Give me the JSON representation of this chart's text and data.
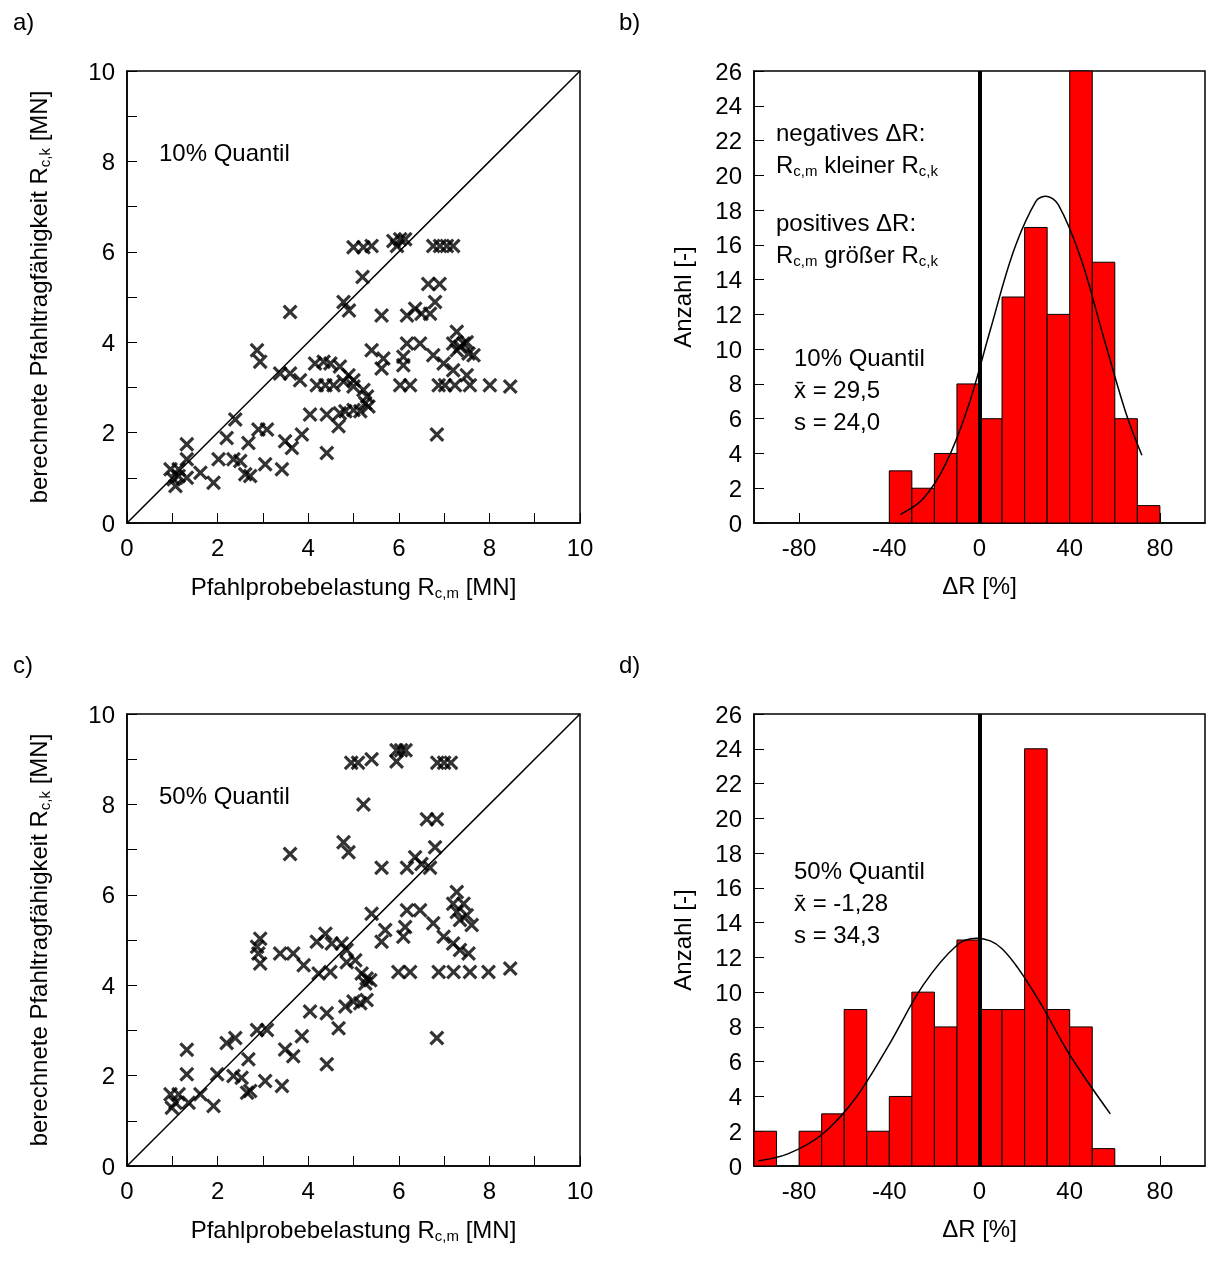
{
  "chart_data": [
    {
      "type": "scatter",
      "title": "a)",
      "xlabel": "Pfahlprobebelastung R$_{c,m}$ [MN]",
      "ylabel": "berechnete Pfahltragfähigkeit R$_{c,k}$ [MN]",
      "annotations": [
        "10% Quantil"
      ],
      "marker": "cross",
      "xlim": [
        0,
        10
      ],
      "ylim": [
        0,
        10
      ],
      "xticks": [
        0,
        {
          "value": 1,
          "label": null
        },
        2,
        {
          "value": 3,
          "label": null
        },
        4,
        {
          "value": 5,
          "label": null
        },
        6,
        {
          "value": 7,
          "label": null
        },
        8,
        {
          "value": 9,
          "label": null
        },
        10
      ],
      "yticks": [
        0,
        {
          "value": 1,
          "label": null
        },
        2,
        {
          "value": 3,
          "label": null
        },
        4,
        {
          "value": 5,
          "label": null
        },
        6,
        {
          "value": 7,
          "label": null
        },
        8,
        {
          "value": 9,
          "label": null
        },
        10
      ],
      "series": [
        {
          "color": "#000000",
          "x": [
            5.0,
            5.22,
            5.4,
            5.88,
            6.03,
            6.14,
            5.96,
            6.76,
            6.91,
            7.06,
            7.2,
            5.2,
            4.78,
            4.9,
            3.6,
            5.62,
            6.18,
            6.36,
            6.5,
            6.69,
            6.8,
            6.65,
            6.9,
            7.28,
            7.2,
            7.43,
            7.28,
            7.54,
            7.35,
            7.5,
            2.87,
            2.94,
            5.4,
            5.66,
            5.62,
            6.18,
            6.47,
            6.1,
            6.1,
            6.76,
            6.99,
            7.2,
            7.5,
            7.65,
            3.38,
            3.6,
            3.82,
            4.15,
            4.34,
            4.49,
            4.7,
            4.89,
            5.0,
            4.19,
            4.38,
            4.56,
            4.78,
            5.0,
            5.22,
            5.3,
            5.26,
            5.33,
            6.03,
            6.25,
            6.88,
            7.02,
            7.24,
            7.57,
            8.01,
            8.46,
            5.0,
            4.82,
            5.15,
            4.7,
            4.04,
            4.41,
            4.67,
            6.84,
            2.39,
            2.2,
            2.68,
            2.9,
            3.09,
            3.49,
            3.64,
            3.86,
            4.41,
            1.32,
            0.96,
            1.14,
            1.32,
            1.03,
            1.14,
            1.32,
            1.07,
            1.62,
            1.91,
            2.02,
            2.35,
            2.5,
            2.61,
            2.72,
            3.05,
            3.42
          ],
          "values": [
            6.1,
            6.1,
            6.13,
            6.24,
            6.28,
            6.28,
            6.13,
            6.13,
            6.13,
            6.13,
            6.13,
            5.44,
            4.89,
            4.7,
            4.67,
            4.59,
            4.59,
            4.74,
            4.63,
            4.63,
            4.89,
            5.29,
            5.29,
            4.23,
            3.97,
            3.97,
            3.82,
            3.75,
            3.9,
            4.0,
            3.82,
            3.57,
            3.82,
            3.64,
            3.42,
            3.97,
            3.97,
            3.68,
            3.49,
            3.71,
            3.53,
            3.38,
            3.27,
            3.71,
            3.31,
            3.31,
            3.16,
            3.53,
            3.57,
            3.53,
            3.46,
            3.27,
            3.16,
            3.05,
            3.05,
            3.05,
            3.13,
            3.02,
            2.94,
            2.8,
            2.65,
            2.58,
            3.05,
            3.05,
            3.05,
            3.05,
            3.05,
            3.05,
            3.05,
            3.02,
            2.5,
            2.47,
            2.47,
            2.43,
            2.4,
            2.4,
            2.14,
            1.96,
            2.29,
            1.88,
            1.77,
            2.07,
            2.07,
            1.81,
            1.66,
            1.96,
            1.55,
            1.74,
            1.19,
            1.19,
            1.41,
            0.97,
            1.04,
            1.0,
            0.82,
            1.11,
            0.89,
            1.41,
            1.41,
            1.37,
            1.08,
            1.04,
            1.3,
            1.19
          ]
        },
        {
          "type": "line",
          "marker": "none",
          "color": "#000000",
          "x": [
            0,
            10
          ],
          "values": [
            0,
            10
          ]
        }
      ]
    },
    {
      "type": "histogram",
      "title": "b)",
      "xlabel": "ΔR [%]",
      "ylabel": "Anzahl [-]",
      "annotations": [
        "negatives ΔR:\nR$_{c,m}$ kleiner R$_{c,k}$",
        "positives ΔR:\nR$_{c,m}$ größer R$_{c,k}$",
        "10% Quantil\nx̄ = 29,5\ns = 24,0"
      ],
      "bins": [
        -40,
        -30,
        -20,
        -10,
        0,
        10,
        20,
        30,
        40,
        50,
        60,
        70,
        80
      ],
      "values": [
        3,
        2,
        4,
        8,
        6,
        13,
        17,
        12,
        26,
        15,
        6,
        1
      ],
      "color": "#ff0000",
      "xlim": [
        -100,
        100
      ],
      "xticks": [
        -80,
        -40,
        0,
        40,
        80
      ],
      "ylim": [
        0,
        26
      ],
      "yticks": [
        0,
        2,
        4,
        6,
        8,
        10,
        12,
        14,
        16,
        18,
        20,
        22,
        24,
        26
      ],
      "ref_lines": [
        {
          "axis": "x",
          "value": 0,
          "color": "#000000"
        }
      ],
      "series": [
        {
          "type": "line",
          "color": "#000000",
          "x": [
            -35,
            -25,
            -15,
            -5,
            5,
            15,
            25,
            29.5,
            35,
            45,
            55,
            65,
            72
          ],
          "values": [
            0.5,
            1.4,
            3.4,
            6.7,
            11.2,
            15.6,
            18.5,
            18.8,
            18.3,
            15.2,
            10.7,
            6.3,
            3.9
          ]
        }
      ]
    },
    {
      "type": "scatter",
      "title": "c)",
      "xlabel": "Pfahlprobebelastung R$_{c,m}$ [MN]",
      "ylabel": "berechnete Pfahltragfähigkeit R$_{c,k}$ [MN]",
      "annotations": [
        "50% Quantil"
      ],
      "marker": "cross",
      "xlim": [
        0,
        10
      ],
      "ylim": [
        0,
        10
      ],
      "xticks": [
        0,
        {
          "value": 1,
          "label": null
        },
        2,
        {
          "value": 3,
          "label": null
        },
        4,
        {
          "value": 5,
          "label": null
        },
        6,
        {
          "value": 7,
          "label": null
        },
        8,
        {
          "value": 9,
          "label": null
        },
        10
      ],
      "yticks": [
        0,
        {
          "value": 1,
          "label": null
        },
        2,
        {
          "value": 3,
          "label": null
        },
        4,
        {
          "value": 5,
          "label": null
        },
        6,
        {
          "value": 7,
          "label": null
        },
        8,
        {
          "value": 9,
          "label": null
        },
        10
      ],
      "series": [
        {
          "color": "#000000",
          "x": [
            4.95,
            5.1,
            5.4,
            5.95,
            6.05,
            6.15,
            5.95,
            6.85,
            7.0,
            7.15,
            5.22,
            6.62,
            6.84,
            3.6,
            4.78,
            4.89,
            6.8,
            5.62,
            6.18,
            6.36,
            6.5,
            6.69,
            7.28,
            7.2,
            7.43,
            7.28,
            7.5,
            7.35,
            7.61,
            7.54,
            5.4,
            5.7,
            5.62,
            6.18,
            6.47,
            6.14,
            6.1,
            6.76,
            6.99,
            7.2,
            7.35,
            2.94,
            2.87,
            2.9,
            2.94,
            3.38,
            3.67,
            3.9,
            4.19,
            4.38,
            4.52,
            4.74,
            4.85,
            4.23,
            4.49,
            4.85,
            5.04,
            5.18,
            5.29,
            5.26,
            5.37,
            5.99,
            6.25,
            6.88,
            7.21,
            7.57,
            7.98,
            8.46,
            4.04,
            4.41,
            4.67,
            4.82,
            5.0,
            5.15,
            5.29,
            6.84,
            2.2,
            2.39,
            2.87,
            3.09,
            3.49,
            3.67,
            3.86,
            4.41,
            2.68,
            1.32,
            1.32,
            1.99,
            2.35,
            2.53,
            2.65,
            2.72,
            3.05,
            3.42,
            0.96,
            1.14,
            1.07,
            1.36,
            1.62,
            1.91,
            0.99
          ],
          "values": [
            8.92,
            8.92,
            9.0,
            9.2,
            9.2,
            9.2,
            8.95,
            8.92,
            8.92,
            8.92,
            8.0,
            7.67,
            7.67,
            6.9,
            7.16,
            6.94,
            7.05,
            6.6,
            6.6,
            6.83,
            6.68,
            6.6,
            6.06,
            5.8,
            5.8,
            5.62,
            5.55,
            5.44,
            5.33,
            4.7,
            5.58,
            5.22,
            4.96,
            5.66,
            5.66,
            5.29,
            5.07,
            5.37,
            5.07,
            4.92,
            4.78,
            5.03,
            4.85,
            4.7,
            4.48,
            4.7,
            4.7,
            4.44,
            4.96,
            5.14,
            4.92,
            4.92,
            4.78,
            4.26,
            4.29,
            4.51,
            4.55,
            4.26,
            4.15,
            4.04,
            4.11,
            4.29,
            4.29,
            4.29,
            4.29,
            4.29,
            4.29,
            4.37,
            3.42,
            3.38,
            3.05,
            3.53,
            3.64,
            3.6,
            3.67,
            2.83,
            2.72,
            2.83,
            3.01,
            3.01,
            2.58,
            2.43,
            2.87,
            2.25,
            2.36,
            2.57,
            2.03,
            2.03,
            1.99,
            1.95,
            1.62,
            1.66,
            1.88,
            1.77,
            1.59,
            1.59,
            1.4,
            1.4,
            1.59,
            1.33,
            1.29
          ]
        },
        {
          "type": "line",
          "marker": "none",
          "color": "#000000",
          "x": [
            0,
            10
          ],
          "values": [
            0,
            10
          ]
        }
      ]
    },
    {
      "type": "histogram",
      "title": "d)",
      "xlabel": "ΔR [%]",
      "ylabel": "Anzahl [-]",
      "annotations": [
        "50% Quantil\nx̄ = -1,28\ns = 34,3"
      ],
      "bins": [
        -100,
        -90,
        -80,
        -70,
        -60,
        -50,
        -40,
        -30,
        -20,
        -10,
        0,
        10,
        20,
        30,
        40,
        50,
        60
      ],
      "values": [
        2,
        0,
        2,
        3,
        9,
        2,
        4,
        10,
        8,
        13,
        9,
        9,
        24,
        9,
        8,
        1
      ],
      "color": "#ff0000",
      "xlim": [
        -100,
        100
      ],
      "xticks": [
        -80,
        -40,
        0,
        40,
        80
      ],
      "ylim": [
        0,
        26
      ],
      "yticks": [
        0,
        2,
        4,
        6,
        8,
        10,
        12,
        14,
        16,
        18,
        20,
        22,
        24,
        26
      ],
      "ref_lines": [
        {
          "axis": "x",
          "value": 0,
          "color": "#000000"
        }
      ],
      "series": [
        {
          "type": "line",
          "color": "#000000",
          "x": [
            -98,
            -85,
            -70,
            -55,
            -40,
            -25,
            -10,
            -1.28,
            10,
            25,
            40,
            58
          ],
          "values": [
            0.3,
            0.7,
            1.8,
            3.9,
            7.0,
            10.4,
            12.7,
            13.1,
            12.5,
            9.8,
            6.4,
            3.0
          ]
        }
      ]
    }
  ]
}
